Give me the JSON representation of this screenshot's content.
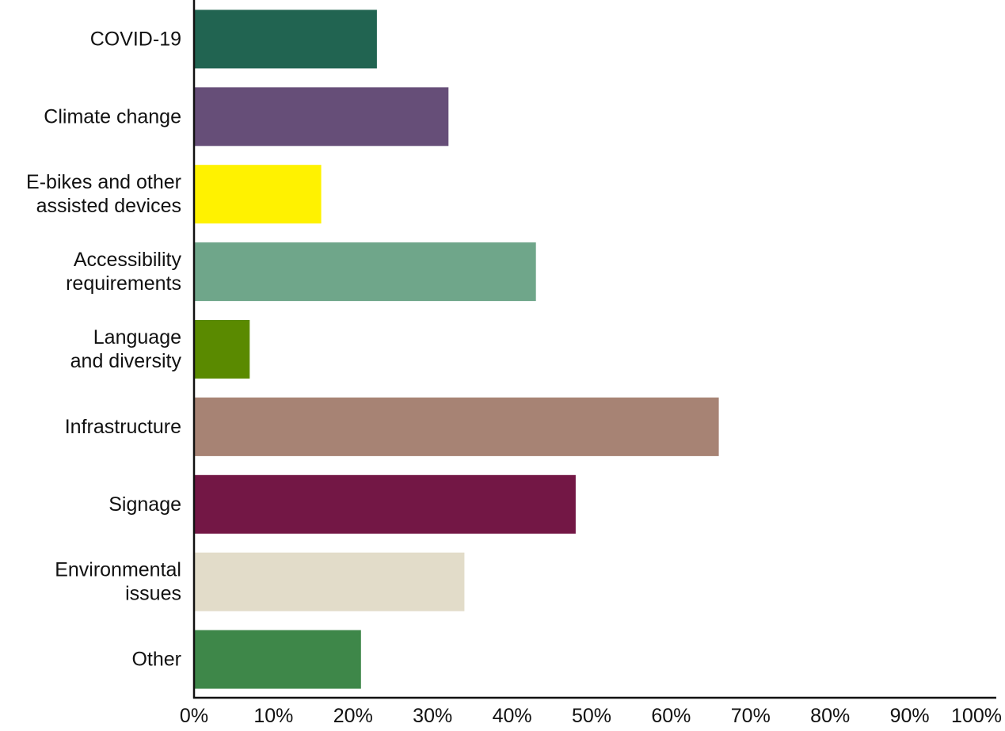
{
  "chart_data": {
    "type": "bar",
    "orientation": "horizontal",
    "title": "",
    "xlabel": "",
    "ylabel": "",
    "categories": [
      [
        "COVID-19"
      ],
      [
        "Climate change"
      ],
      [
        "E-bikes and other",
        "assisted devices"
      ],
      [
        "Accessibility",
        "requirements"
      ],
      [
        "Language",
        "and diversity"
      ],
      [
        "Infrastructure"
      ],
      [
        "Signage"
      ],
      [
        "Environmental",
        "issues"
      ],
      [
        "Other"
      ]
    ],
    "values": [
      23,
      32,
      16,
      43,
      7,
      66,
      48,
      34,
      21
    ],
    "colors": [
      "#216451",
      "#664e78",
      "#fff200",
      "#6fa68a",
      "#5a8a00",
      "#a78374",
      "#731745",
      "#e2dcc9",
      "#3e8749"
    ],
    "xlim": [
      0,
      100
    ],
    "xticks": [
      "0%",
      "10%",
      "20%",
      "30%",
      "40%",
      "50%",
      "60%",
      "70%",
      "80%",
      "90%",
      "100%"
    ],
    "grid": false,
    "legend": "none"
  }
}
